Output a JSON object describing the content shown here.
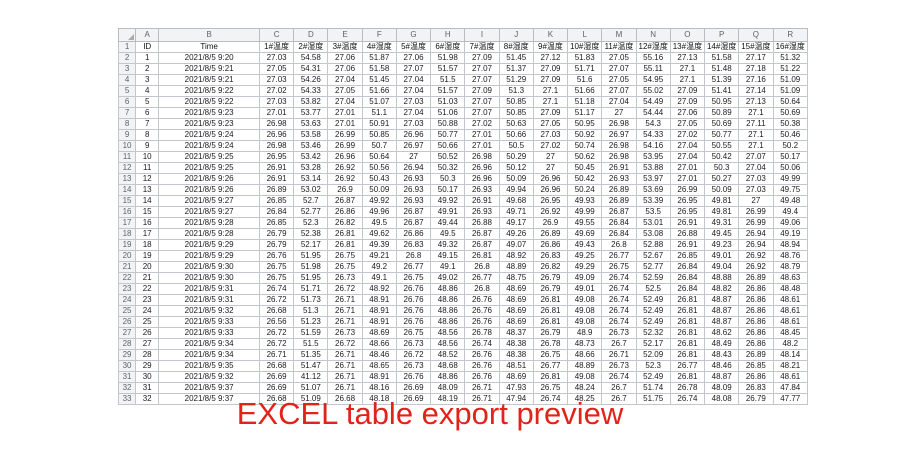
{
  "page": {
    "caption": "EXCEL table export preview",
    "caption_color": "#e2231a"
  },
  "spreadsheet": {
    "column_letters": [
      "A",
      "B",
      "C",
      "D",
      "E",
      "F",
      "G",
      "H",
      "I",
      "J",
      "K",
      "L",
      "M",
      "N",
      "O",
      "P",
      "Q",
      "R"
    ],
    "header_row": [
      "ID",
      "Time",
      "1#温度",
      "2#湿度",
      "3#温度",
      "4#湿度",
      "5#温度",
      "6#湿度",
      "7#温度",
      "8#湿度",
      "9#温度",
      "10#湿度",
      "11#温度",
      "12#湿度",
      "13#温度",
      "14#湿度",
      "15#温度",
      "16#湿度"
    ],
    "rows": [
      [
        "1",
        "2021/8/5 9:20",
        "27.03",
        "54.58",
        "27.06",
        "51.87",
        "27.06",
        "51.98",
        "27.09",
        "51.45",
        "27.12",
        "51.83",
        "27.05",
        "55.16",
        "27.13",
        "51.58",
        "27.17",
        "51.32"
      ],
      [
        "2",
        "2021/8/5 9:21",
        "27.05",
        "54.31",
        "27.06",
        "51.58",
        "27.07",
        "51.57",
        "27.07",
        "51.37",
        "27.09",
        "51.71",
        "27.07",
        "55.11",
        "27.1",
        "51.48",
        "27.18",
        "51.22"
      ],
      [
        "3",
        "2021/8/5 9:21",
        "27.03",
        "54.26",
        "27.04",
        "51.45",
        "27.04",
        "51.5",
        "27.07",
        "51.29",
        "27.09",
        "51.6",
        "27.05",
        "54.95",
        "27.1",
        "51.39",
        "27.16",
        "51.09"
      ],
      [
        "4",
        "2021/8/5 9:22",
        "27.02",
        "54.33",
        "27.05",
        "51.66",
        "27.04",
        "51.57",
        "27.09",
        "51.3",
        "27.1",
        "51.66",
        "27.07",
        "55.02",
        "27.09",
        "51.41",
        "27.14",
        "51.09"
      ],
      [
        "5",
        "2021/8/5 9:22",
        "27.03",
        "53.82",
        "27.04",
        "51.07",
        "27.03",
        "51.03",
        "27.07",
        "50.85",
        "27.1",
        "51.18",
        "27.04",
        "54.49",
        "27.09",
        "50.95",
        "27.13",
        "50.64"
      ],
      [
        "6",
        "2021/8/5 9:23",
        "27.01",
        "53.77",
        "27.01",
        "51.1",
        "27.04",
        "51.06",
        "27.07",
        "50.85",
        "27.09",
        "51.17",
        "27",
        "54.44",
        "27.06",
        "50.89",
        "27.1",
        "50.69"
      ],
      [
        "7",
        "2021/8/5 9:23",
        "26.98",
        "53.63",
        "27.01",
        "50.91",
        "27.03",
        "50.88",
        "27.02",
        "50.63",
        "27.05",
        "50.95",
        "26.98",
        "54.3",
        "27.05",
        "50.69",
        "27.11",
        "50.38"
      ],
      [
        "8",
        "2021/8/5 9:24",
        "26.96",
        "53.58",
        "26.99",
        "50.85",
        "26.96",
        "50.77",
        "27.01",
        "50.66",
        "27.03",
        "50.92",
        "26.97",
        "54.33",
        "27.02",
        "50.77",
        "27.1",
        "50.46"
      ],
      [
        "9",
        "2021/8/5 9:24",
        "26.98",
        "53.46",
        "26.99",
        "50.7",
        "26.97",
        "50.66",
        "27.01",
        "50.5",
        "27.02",
        "50.74",
        "26.98",
        "54.16",
        "27.04",
        "50.55",
        "27.1",
        "50.2"
      ],
      [
        "10",
        "2021/8/5 9:25",
        "26.95",
        "53.42",
        "26.96",
        "50.64",
        "27",
        "50.52",
        "26.98",
        "50.29",
        "27",
        "50.62",
        "26.98",
        "53.95",
        "27.04",
        "50.42",
        "27.07",
        "50.17"
      ],
      [
        "11",
        "2021/8/5 9:25",
        "26.91",
        "53.28",
        "26.92",
        "50.56",
        "26.94",
        "50.32",
        "26.96",
        "50.12",
        "27",
        "50.45",
        "26.91",
        "53.88",
        "27.01",
        "50.3",
        "27.04",
        "50.06"
      ],
      [
        "12",
        "2021/8/5 9:26",
        "26.91",
        "53.14",
        "26.92",
        "50.43",
        "26.93",
        "50.3",
        "26.96",
        "50.09",
        "26.96",
        "50.42",
        "26.93",
        "53.97",
        "27.01",
        "50.27",
        "27.03",
        "49.99"
      ],
      [
        "13",
        "2021/8/5 9:26",
        "26.89",
        "53.02",
        "26.9",
        "50.09",
        "26.93",
        "50.17",
        "26.93",
        "49.94",
        "26.96",
        "50.24",
        "26.89",
        "53.69",
        "26.99",
        "50.09",
        "27.03",
        "49.75"
      ],
      [
        "14",
        "2021/8/5 9:27",
        "26.85",
        "52.7",
        "26.87",
        "49.92",
        "26.93",
        "49.92",
        "26.91",
        "49.68",
        "26.95",
        "49.93",
        "26.89",
        "53.39",
        "26.95",
        "49.81",
        "27",
        "49.48"
      ],
      [
        "15",
        "2021/8/5 9:27",
        "26.84",
        "52.77",
        "26.86",
        "49.96",
        "26.87",
        "49.91",
        "26.93",
        "49.71",
        "26.92",
        "49.99",
        "26.87",
        "53.5",
        "26.95",
        "49.81",
        "26.99",
        "49.4"
      ],
      [
        "16",
        "2021/8/5 9:28",
        "26.85",
        "52.3",
        "26.82",
        "49.5",
        "26.87",
        "49.44",
        "26.88",
        "49.17",
        "26.9",
        "49.55",
        "26.84",
        "53.01",
        "26.91",
        "49.31",
        "26.99",
        "49.06"
      ],
      [
        "17",
        "2021/8/5 9:28",
        "26.79",
        "52.38",
        "26.81",
        "49.62",
        "26.86",
        "49.5",
        "26.87",
        "49.26",
        "26.89",
        "49.69",
        "26.84",
        "53.08",
        "26.88",
        "49.45",
        "26.94",
        "49.19"
      ],
      [
        "18",
        "2021/8/5 9:29",
        "26.79",
        "52.17",
        "26.81",
        "49.39",
        "26.83",
        "49.32",
        "26.87",
        "49.07",
        "26.86",
        "49.43",
        "26.8",
        "52.88",
        "26.91",
        "49.23",
        "26.94",
        "48.94"
      ],
      [
        "19",
        "2021/8/5 9:29",
        "26.76",
        "51.95",
        "26.75",
        "49.21",
        "26.8",
        "49.15",
        "26.81",
        "48.92",
        "26.83",
        "49.25",
        "26.77",
        "52.67",
        "26.85",
        "49.01",
        "26.92",
        "48.76"
      ],
      [
        "20",
        "2021/8/5 9:30",
        "26.75",
        "51.98",
        "26.75",
        "49.2",
        "26.77",
        "49.1",
        "26.8",
        "48.89",
        "26.82",
        "49.29",
        "26.75",
        "52.77",
        "26.84",
        "49.04",
        "26.92",
        "48.79"
      ],
      [
        "21",
        "2021/8/5 9:30",
        "26.75",
        "51.95",
        "26.73",
        "49.1",
        "26.75",
        "49.02",
        "26.77",
        "48.75",
        "26.79",
        "49.09",
        "26.74",
        "52.59",
        "26.84",
        "48.88",
        "26.89",
        "48.63"
      ],
      [
        "22",
        "2021/8/5 9:31",
        "26.74",
        "51.71",
        "26.72",
        "48.92",
        "26.76",
        "48.86",
        "26.8",
        "48.69",
        "26.79",
        "49.01",
        "26.74",
        "52.5",
        "26.84",
        "48.82",
        "26.86",
        "48.48"
      ],
      [
        "23",
        "2021/8/5 9:31",
        "26.72",
        "51.73",
        "26.71",
        "48.91",
        "26.76",
        "48.86",
        "26.76",
        "48.69",
        "26.81",
        "49.08",
        "26.74",
        "52.49",
        "26.81",
        "48.87",
        "26.86",
        "48.61"
      ],
      [
        "24",
        "2021/8/5 9:32",
        "26.68",
        "51.3",
        "26.71",
        "48.91",
        "26.76",
        "48.86",
        "26.76",
        "48.69",
        "26.81",
        "49.08",
        "26.74",
        "52.49",
        "26.81",
        "48.87",
        "26.86",
        "48.61"
      ],
      [
        "25",
        "2021/8/5 9:33",
        "26.56",
        "51.23",
        "26.71",
        "48.91",
        "26.76",
        "48.86",
        "26.76",
        "48.69",
        "26.81",
        "49.08",
        "26.74",
        "52.49",
        "26.81",
        "48.87",
        "26.86",
        "48.61"
      ],
      [
        "26",
        "2021/8/5 9:33",
        "26.72",
        "51.59",
        "26.73",
        "48.69",
        "26.75",
        "48.56",
        "26.78",
        "48.37",
        "26.79",
        "48.9",
        "26.73",
        "52.32",
        "26.81",
        "48.62",
        "26.86",
        "48.45"
      ],
      [
        "27",
        "2021/8/5 9:34",
        "26.72",
        "51.5",
        "26.72",
        "48.66",
        "26.73",
        "48.56",
        "26.74",
        "48.38",
        "26.78",
        "48.73",
        "26.7",
        "52.17",
        "26.81",
        "48.49",
        "26.86",
        "48.2"
      ],
      [
        "28",
        "2021/8/5 9:34",
        "26.71",
        "51.35",
        "26.71",
        "48.46",
        "26.72",
        "48.52",
        "26.76",
        "48.38",
        "26.75",
        "48.66",
        "26.71",
        "52.09",
        "26.81",
        "48.43",
        "26.89",
        "48.14"
      ],
      [
        "29",
        "2021/8/5 9:35",
        "26.68",
        "51.47",
        "26.71",
        "48.65",
        "26.73",
        "48.68",
        "26.76",
        "48.51",
        "26.77",
        "48.89",
        "26.73",
        "52.3",
        "26.77",
        "48.46",
        "26.85",
        "48.21"
      ],
      [
        "30",
        "2021/8/5 9:32",
        "26.69",
        "41.12",
        "26.71",
        "48.91",
        "26.76",
        "48.86",
        "26.76",
        "48.69",
        "26.81",
        "49.08",
        "26.74",
        "52.49",
        "26.81",
        "48.87",
        "26.86",
        "48.61"
      ],
      [
        "31",
        "2021/8/5 9:37",
        "26.69",
        "51.07",
        "26.71",
        "48.16",
        "26.69",
        "48.09",
        "26.71",
        "47.93",
        "26.75",
        "48.24",
        "26.7",
        "51.74",
        "26.78",
        "48.09",
        "26.83",
        "47.84"
      ],
      [
        "32",
        "2021/8/5 9:37",
        "26.68",
        "51.09",
        "26.68",
        "48.18",
        "26.69",
        "48.19",
        "26.71",
        "47.94",
        "26.74",
        "48.25",
        "26.7",
        "51.75",
        "26.74",
        "48.08",
        "26.79",
        "47.77"
      ]
    ]
  }
}
